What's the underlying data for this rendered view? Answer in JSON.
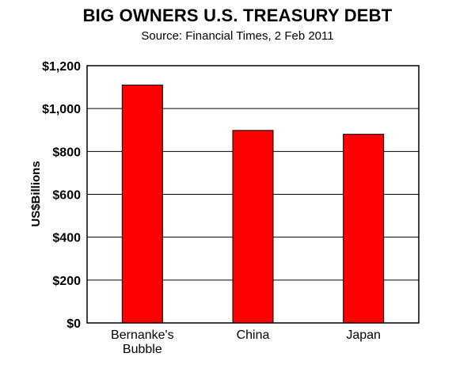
{
  "chart_data": {
    "type": "bar",
    "title": "BIG OWNERS U.S. TREASURY DEBT",
    "subtitle": "Source: Financial Times, 2 Feb 2011",
    "ylabel": "US$Billions",
    "xlabel": "",
    "categories": [
      [
        "Bernanke's",
        "Bubble"
      ],
      [
        "China"
      ],
      [
        "Japan"
      ]
    ],
    "values": [
      1110,
      898,
      880
    ],
    "ylim": [
      0,
      1200
    ],
    "yticks": [
      0,
      200,
      400,
      600,
      800,
      1000,
      1200
    ],
    "ytick_labels": [
      "$0",
      "$200",
      "$400",
      "$600",
      "$800",
      "$1,000",
      "$1,200"
    ],
    "grid": true,
    "bar_color": "#ff0000",
    "bar_outline": "#000000"
  }
}
